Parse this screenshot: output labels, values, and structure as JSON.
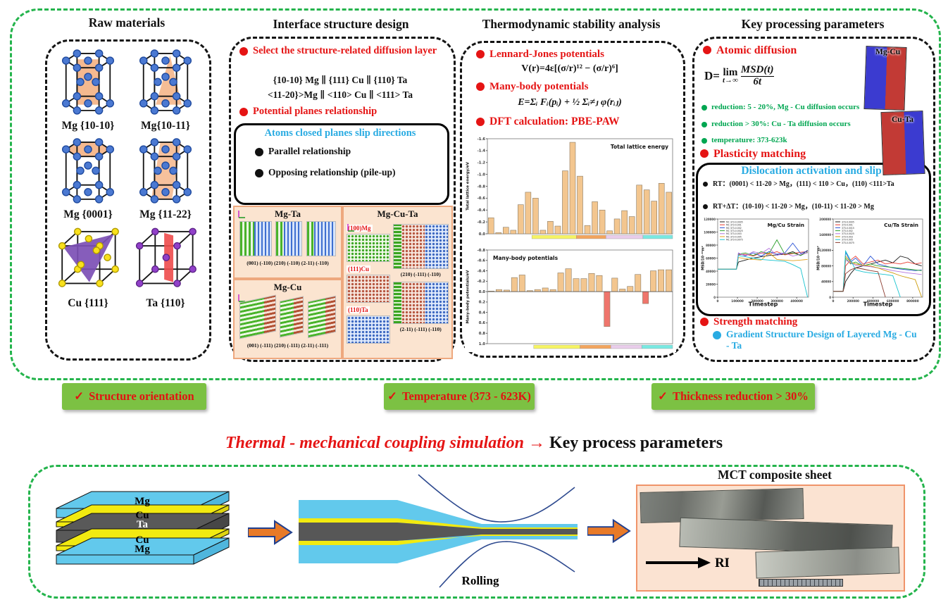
{
  "panel1": {
    "title": "Raw materials",
    "crystals": [
      {
        "label": "Mg {10-10}"
      },
      {
        "label": "Mg{10-11}"
      },
      {
        "label": "Mg {0001}"
      },
      {
        "label": "Mg {11-22}"
      },
      {
        "label": "Cu {111}"
      },
      {
        "label": "Ta {110}"
      }
    ]
  },
  "panel2": {
    "title": "Interface structure design",
    "bullet_select": "Select the structure-related diffusion layer",
    "relation_line1": "{10-10} Mg ∥ {111} Cu ∥ {110} Ta",
    "relation_line2": "<11-20}>Mg ∥ <110> Cu ∥ <111> Ta",
    "bullet_planes": "Potential planes relationship",
    "slip_box": {
      "title": "Atoms closed planes slip directions",
      "items": [
        "Parallel relationship",
        "Opposing relationship (pile-up)"
      ]
    },
    "mg_ta": {
      "title": "Mg-Ta",
      "caption": "(001) (-110)  (210) (-110)  (2-11) (-110)"
    },
    "mg_cu": {
      "title": "Mg-Cu",
      "caption": "(001) (-111)  (210) (-111)  (2-11) (-111)"
    },
    "mg_cu_ta": {
      "title": "Mg-Cu-Ta",
      "layer_labels": [
        "(100)Mg",
        "(111)Cu",
        "(110)Ta"
      ],
      "caption1": "(210) (-111) (-110)",
      "caption2": "(2-11) (-111) (-110)"
    }
  },
  "panel3": {
    "title": "Thermodynamic stability analysis",
    "bullet_lj": "Lennard-Jones potentials",
    "formula_lj": "V(r)=4ε[(σ/r)¹² − (σ/r)⁶]",
    "bullet_many": "Many-body potentials",
    "formula_many": "E=Σᵢ Fᵢ(pᵢ) + ½ Σᵢ≠ⱼ φ(rᵢⱼ)",
    "bullet_dft": "DFT calculation: PBE-PAW"
  },
  "panel4": {
    "title": "Key processing parameters",
    "bullet_diffusion": "Atomic diffusion",
    "formula_d": {
      "lhs": "D=",
      "lim": "lim",
      "limit": "t→∞",
      "num": "MSD(t)",
      "den": "6t"
    },
    "box_labels": [
      "Mg-Cu",
      "Cu-Ta"
    ],
    "green_notes": [
      "reduction: 5 - 20%, Mg - Cu diffusion occurs",
      "reduction > 30%: Cu - Ta diffusion occurs",
      "temperature: 373-623k"
    ],
    "bullet_plasticity": "Plasticity matching",
    "dislocation_box": {
      "title": "Dislocation activation and slip",
      "line1": "RT：(0001) < 11-20 > Mg，(111) < 110 > Cu，(110) <111>Ta",
      "line2": "RT+ΔT：(10-10) < 11-20 > Mg，(10-11) < 11-20 > Mg"
    },
    "bullet_strength": "Strength matching",
    "bullet_gradient": "Gradient Structure Design of Layered Mg - Cu - Ta"
  },
  "banners": [
    {
      "check": "✓",
      "label": "Structure orientation"
    },
    {
      "check": "✓",
      "label": "Temperature (373 - 623K)"
    },
    {
      "check": "✓",
      "label": "Thickness reduction > 30%"
    }
  ],
  "mid_title": {
    "red": "Thermal - mechanical coupling simulation",
    "arrow": "→",
    "black": "Key process parameters"
  },
  "bottom": {
    "stack_layers": [
      "Mg",
      "Cu",
      "Ta",
      "Cu",
      "Mg"
    ],
    "rolling_label": "Rolling",
    "photo_title": "MCT composite sheet",
    "rd_label": "RD"
  },
  "chart_data": [
    {
      "type": "bar",
      "title": "Total lattice energy",
      "title_anchor": "right",
      "ylabel": "Total lattice energy/eV",
      "ylim": [
        0,
        -1.6
      ],
      "yticks": [
        0,
        -0.2,
        -0.4,
        -0.6,
        -0.8,
        -1.0,
        -1.2,
        -1.4,
        -1.6
      ],
      "ytickfmt": "f1",
      "bar_color": "#f3c68f",
      "values": [
        -0.27,
        -0.02,
        -0.11,
        -0.06,
        -0.49,
        -0.7,
        -0.6,
        -0.06,
        -0.21,
        -0.13,
        -1.06,
        -1.54,
        -0.97,
        -0.14,
        -0.54,
        -0.4,
        -0.05,
        -0.25,
        -0.39,
        -0.29,
        -0.82,
        -0.74,
        -0.55,
        -0.85,
        -0.7
      ],
      "groups": [
        {
          "s": 6,
          "e": 12,
          "color": "#f6f463"
        },
        {
          "s": 12,
          "e": 16,
          "color": "#f2a55e"
        },
        {
          "s": 16,
          "e": 21,
          "color": "#e9cdeb"
        },
        {
          "s": 21,
          "e": 25,
          "color": "#79e9e2"
        }
      ]
    },
    {
      "type": "bar",
      "title": "Many-body potentials",
      "title_anchor": "left",
      "ylabel": "Many-body potentials/eV",
      "ylim": [
        1.0,
        -0.8
      ],
      "yticks": [
        -0.8,
        -0.6,
        -0.4,
        -0.2,
        0,
        0.2,
        0.4,
        0.6,
        0.8,
        1.0
      ],
      "ytickfmt": "f1",
      "bar_color": "#f3c68f",
      "highlight": {
        "indices": [
          15,
          20
        ],
        "color": "#ef756c"
      },
      "values": [
        -0.01,
        -0.04,
        -0.03,
        -0.27,
        -0.32,
        -0.02,
        -0.04,
        -0.07,
        -0.04,
        -0.36,
        -0.44,
        -0.25,
        -0.25,
        -0.35,
        -0.31,
        0.67,
        -0.26,
        -0.05,
        -0.1,
        -0.33,
        0.23,
        -0.4,
        -0.42,
        -0.42
      ],
      "groups": [
        {
          "s": 6,
          "e": 12,
          "color": "#f6f463"
        },
        {
          "s": 12,
          "e": 16,
          "color": "#f2a55e"
        },
        {
          "s": 16,
          "e": 20,
          "color": "#e9cdeb"
        },
        {
          "s": 20,
          "e": 24,
          "color": "#79e9e2"
        }
      ]
    },
    {
      "type": "line",
      "title": "Mg/Cu Strain",
      "ylabel": "MSD/10⁻²⁰m²",
      "xlabel": "Timestep",
      "ylim": [
        0,
        120000
      ],
      "yticks": [
        0,
        20000,
        40000,
        60000,
        80000,
        100000,
        120000
      ],
      "xlim": [
        0,
        460000
      ],
      "xticks": [
        0,
        100000,
        200000,
        300000,
        400000
      ],
      "x": [
        0,
        95000,
        105000,
        140000,
        180000,
        220000,
        260000,
        300000,
        340000,
        380000,
        420000,
        455000
      ],
      "series": [
        {
          "name": "MC 373-0.0005",
          "color": "#1a1a1a",
          "values": [
            43000,
            43000,
            54000,
            57000,
            60000,
            62000,
            64000,
            65000,
            66000,
            70000,
            64000,
            72000
          ]
        },
        {
          "name": "MC 373-0.001",
          "color": "#e8392f",
          "values": [
            43000,
            43000,
            65000,
            66000,
            63000,
            68000,
            66000,
            70000,
            65000,
            67000,
            69000,
            70000
          ]
        },
        {
          "name": "MC 373-0.002",
          "color": "#2b53d6",
          "values": [
            43000,
            43000,
            67000,
            64000,
            68000,
            63000,
            70000,
            66000,
            68000,
            83000,
            67000,
            71000
          ]
        },
        {
          "name": "MC 373-0.0025",
          "color": "#2ea12e",
          "values": [
            43000,
            43000,
            66000,
            68000,
            64000,
            70000,
            67000,
            88000,
            66000,
            68000,
            64000,
            69000
          ]
        },
        {
          "name": "MC 373-0.003",
          "color": "#b473dd",
          "values": [
            43000,
            43000,
            68000,
            63000,
            70000,
            67000,
            75000,
            64000,
            68000,
            63000,
            66000,
            68000
          ]
        },
        {
          "name": "MC 373-0.005",
          "color": "#e0a11b",
          "values": [
            43000,
            43000,
            61000,
            59000,
            58000,
            57000,
            68000,
            58000,
            57000,
            56000,
            57000,
            58000
          ]
        },
        {
          "name": "MC 373-0.0075",
          "color": "#17c3cf",
          "values": [
            43000,
            43000,
            64000,
            62000,
            60000,
            58000,
            57000,
            56000,
            55000,
            50000,
            44000,
            0
          ]
        }
      ]
    },
    {
      "type": "line",
      "title": "Cu/Ta Strain",
      "ylabel": "MSD/10⁻²⁰m²",
      "xlabel": "Timestep",
      "ylim": [
        0,
        200000
      ],
      "yticks": [
        0,
        40000,
        80000,
        120000,
        160000,
        200000
      ],
      "xlim": [
        0,
        900000
      ],
      "xticks": [
        0,
        200000,
        400000,
        600000,
        800000
      ],
      "x": [
        0,
        100000,
        125000,
        175000,
        225000,
        300000,
        375000,
        450000,
        525000,
        600000,
        675000,
        750000,
        825000,
        890000
      ],
      "series": [
        {
          "name": "373-0.0005",
          "color": "#1a1a1a",
          "values": [
            15000,
            15000,
            40000,
            60000,
            75000,
            80000,
            85000,
            90000,
            95000,
            88000,
            105000,
            100000,
            85000,
            80000
          ]
        },
        {
          "name": "373-0.001",
          "color": "#e8392f",
          "values": [
            15000,
            15000,
            80000,
            95000,
            105000,
            85000,
            90000,
            95000,
            85000,
            88000,
            85000,
            90000,
            85000,
            88000
          ]
        },
        {
          "name": "373-0.0015",
          "color": "#2b53d6",
          "values": [
            15000,
            15000,
            115000,
            90000,
            100000,
            80000,
            105000,
            85000,
            80000,
            75000,
            72000,
            70000,
            68000,
            70000
          ]
        },
        {
          "name": "373-0.002",
          "color": "#2ea12e",
          "values": [
            15000,
            15000,
            100000,
            85000,
            90000,
            80000,
            85000,
            80000,
            78000,
            76000,
            74000,
            72000,
            70000,
            68000
          ]
        },
        {
          "name": "373-0.0025",
          "color": "#b473dd",
          "values": [
            15000,
            15000,
            95000,
            88000,
            82000,
            80000,
            78000,
            75000,
            72000,
            68000,
            65000,
            62000,
            60000,
            58000
          ]
        },
        {
          "name": "373-0.003",
          "color": "#cc9a06",
          "values": [
            15000,
            15000,
            105000,
            90000,
            85000,
            82000,
            80000,
            75000,
            68000,
            62000,
            55000,
            50000,
            45000,
            0
          ]
        },
        {
          "name": "373-0.005",
          "color": "#17c3cf",
          "values": [
            15000,
            15000,
            118000,
            95000,
            70000,
            65000,
            62000,
            60000,
            58000,
            55000,
            0,
            null,
            null,
            null
          ]
        },
        {
          "name": "373-0.0075",
          "color": "#8b3a2e",
          "values": [
            15000,
            15000,
            60000,
            70000,
            75000,
            72000,
            68000,
            65000,
            0,
            null,
            null,
            null,
            null,
            null
          ]
        }
      ]
    }
  ]
}
